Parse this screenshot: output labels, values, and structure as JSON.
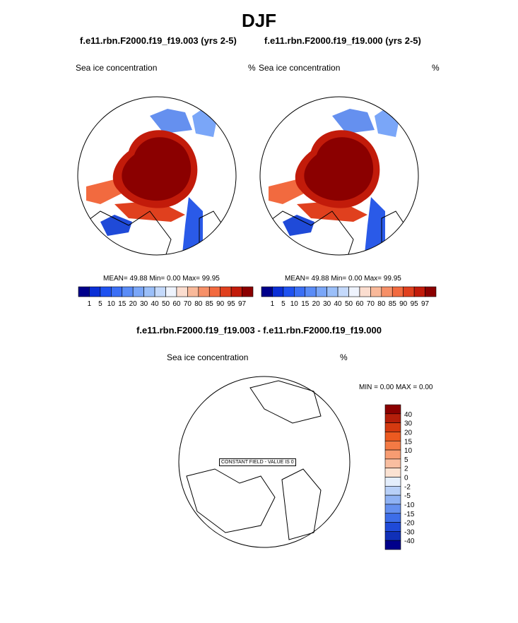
{
  "page_title": "DJF",
  "panel_left": {
    "case": "f.e11.rbn.F2000.f19_f19.003 (yrs 2-5)",
    "variable": "Sea ice concentration",
    "units": "%",
    "stats": "MEAN=  49.88  Min=   0.00  Max=  99.95"
  },
  "panel_right": {
    "case": "f.e11.rbn.F2000.f19_f19.000 (yrs 2-5)",
    "variable": "Sea ice concentration",
    "units": "%",
    "stats": "MEAN=  49.88  Min=   0.00  Max=  99.95"
  },
  "panel_diff": {
    "title": "f.e11.rbn.F2000.f19_f19.003 - f.e11.rbn.F2000.f19_f19.000",
    "variable": "Sea ice concentration",
    "units": "%",
    "stats": "MIN =   0.00 MAX =   0.00",
    "constant_note": "CONSTANT FIELD - VALUE IS 0"
  },
  "colors": {
    "ice_core": "#8b0000",
    "land_outline": "#000000",
    "low_blue": "#00008b"
  },
  "chart_data": [
    {
      "type": "heatmap",
      "title": "f.e11.rbn.F2000.f19_f19.003 (yrs 2-5)",
      "variable": "Sea ice concentration",
      "units": "%",
      "projection": "north polar stereographic",
      "mean": 49.88,
      "min": 0.0,
      "max": 99.95,
      "colorbar_levels": [
        "1",
        "5",
        "10",
        "15",
        "20",
        "30",
        "40",
        "50",
        "60",
        "70",
        "80",
        "85",
        "90",
        "95",
        "97"
      ],
      "colorbar_colors": [
        "#00008b",
        "#0b2fd6",
        "#1f52f0",
        "#3b6ff5",
        "#5a8cf7",
        "#7aa6f8",
        "#9bbff9",
        "#c4d9fb",
        "#eef3fd",
        "#fbddcf",
        "#f9b99a",
        "#f69068",
        "#f26a3f",
        "#e0401e",
        "#c21b0a",
        "#8b0000"
      ]
    },
    {
      "type": "heatmap",
      "title": "f.e11.rbn.F2000.f19_f19.000 (yrs 2-5)",
      "variable": "Sea ice concentration",
      "units": "%",
      "projection": "north polar stereographic",
      "mean": 49.88,
      "min": 0.0,
      "max": 99.95,
      "colorbar_levels": [
        "1",
        "5",
        "10",
        "15",
        "20",
        "30",
        "40",
        "50",
        "60",
        "70",
        "80",
        "85",
        "90",
        "95",
        "97"
      ],
      "colorbar_colors": [
        "#00008b",
        "#0b2fd6",
        "#1f52f0",
        "#3b6ff5",
        "#5a8cf7",
        "#7aa6f8",
        "#9bbff9",
        "#c4d9fb",
        "#eef3fd",
        "#fbddcf",
        "#f9b99a",
        "#f69068",
        "#f26a3f",
        "#e0401e",
        "#c21b0a",
        "#8b0000"
      ]
    },
    {
      "type": "heatmap",
      "title": "f.e11.rbn.F2000.f19_f19.003 - f.e11.rbn.F2000.f19_f19.000",
      "variable": "Sea ice concentration",
      "units": "%",
      "projection": "north polar stereographic",
      "min": 0.0,
      "max": 0.0,
      "constant_value": 0,
      "colorbar_levels": [
        "40",
        "30",
        "20",
        "15",
        "10",
        "5",
        "2",
        "0",
        "-2",
        "-5",
        "-10",
        "-15",
        "-20",
        "-30",
        "-40"
      ],
      "colorbar_colors": [
        "#8b0000",
        "#b41e0a",
        "#d43a10",
        "#ec5a20",
        "#f47a44",
        "#f79c72",
        "#f9bea0",
        "#fbe2d2",
        "#e4eefc",
        "#b8d0f8",
        "#8fb2f4",
        "#6590ef",
        "#3d6de8",
        "#1f4ad8",
        "#1030b8",
        "#00008b"
      ]
    }
  ]
}
